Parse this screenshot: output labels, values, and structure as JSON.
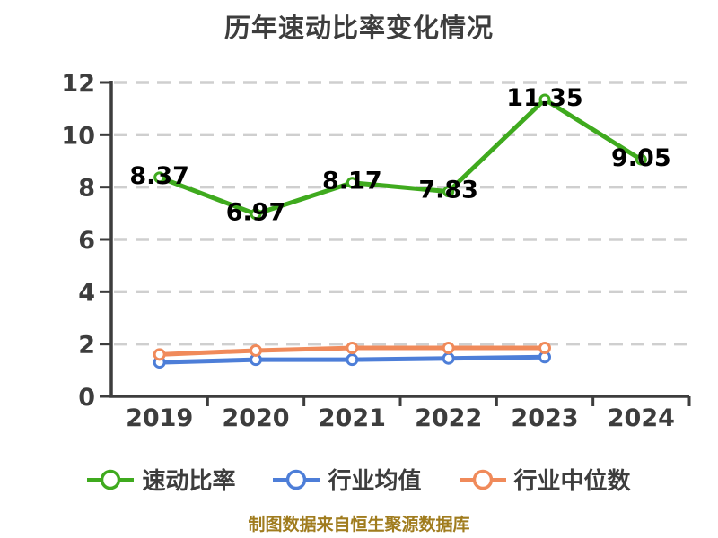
{
  "title": "历年速动比率变化情况",
  "footer": "制图数据来自恒生聚源数据库",
  "colors": {
    "background": "#ffffff",
    "title_text": "#3d3d3d",
    "axis": "#3d3d3d",
    "tick_label": "#3d3d3d",
    "gridline": "#cfcfcf",
    "data_label": "#000000",
    "footer_text": "#a07c1e",
    "series_quick_ratio": "#3faa1e",
    "series_industry_mean": "#4d7ed8",
    "series_industry_median": "#f08a5a"
  },
  "chart_data": {
    "type": "line",
    "title": "历年速动比率变化情况",
    "categories": [
      "2019",
      "2020",
      "2021",
      "2022",
      "2023",
      "2024"
    ],
    "series": [
      {
        "name": "速动比率",
        "color": "#3faa1e",
        "values": [
          8.37,
          6.97,
          8.17,
          7.83,
          11.35,
          9.05
        ],
        "labels": [
          "8.37",
          "6.97",
          "8.17",
          "7.83",
          "11.35",
          "9.05"
        ],
        "show_labels": true
      },
      {
        "name": "行业均值",
        "color": "#4d7ed8",
        "values": [
          1.3,
          1.4,
          1.4,
          1.45,
          1.5,
          null
        ],
        "show_labels": false
      },
      {
        "name": "行业中位数",
        "color": "#f08a5a",
        "values": [
          1.6,
          1.75,
          1.85,
          1.85,
          1.85,
          null
        ],
        "show_labels": false
      }
    ],
    "xlabel": "",
    "ylabel": "",
    "ylim": [
      0,
      12
    ],
    "yticks": [
      0,
      2,
      4,
      6,
      8,
      10,
      12
    ],
    "grid": "horizontal-dashed",
    "legend_position": "bottom"
  },
  "legend": [
    {
      "label": "速动比率",
      "color": "#3faa1e"
    },
    {
      "label": "行业均值",
      "color": "#4d7ed8"
    },
    {
      "label": "行业中位数",
      "color": "#f08a5a"
    }
  ]
}
